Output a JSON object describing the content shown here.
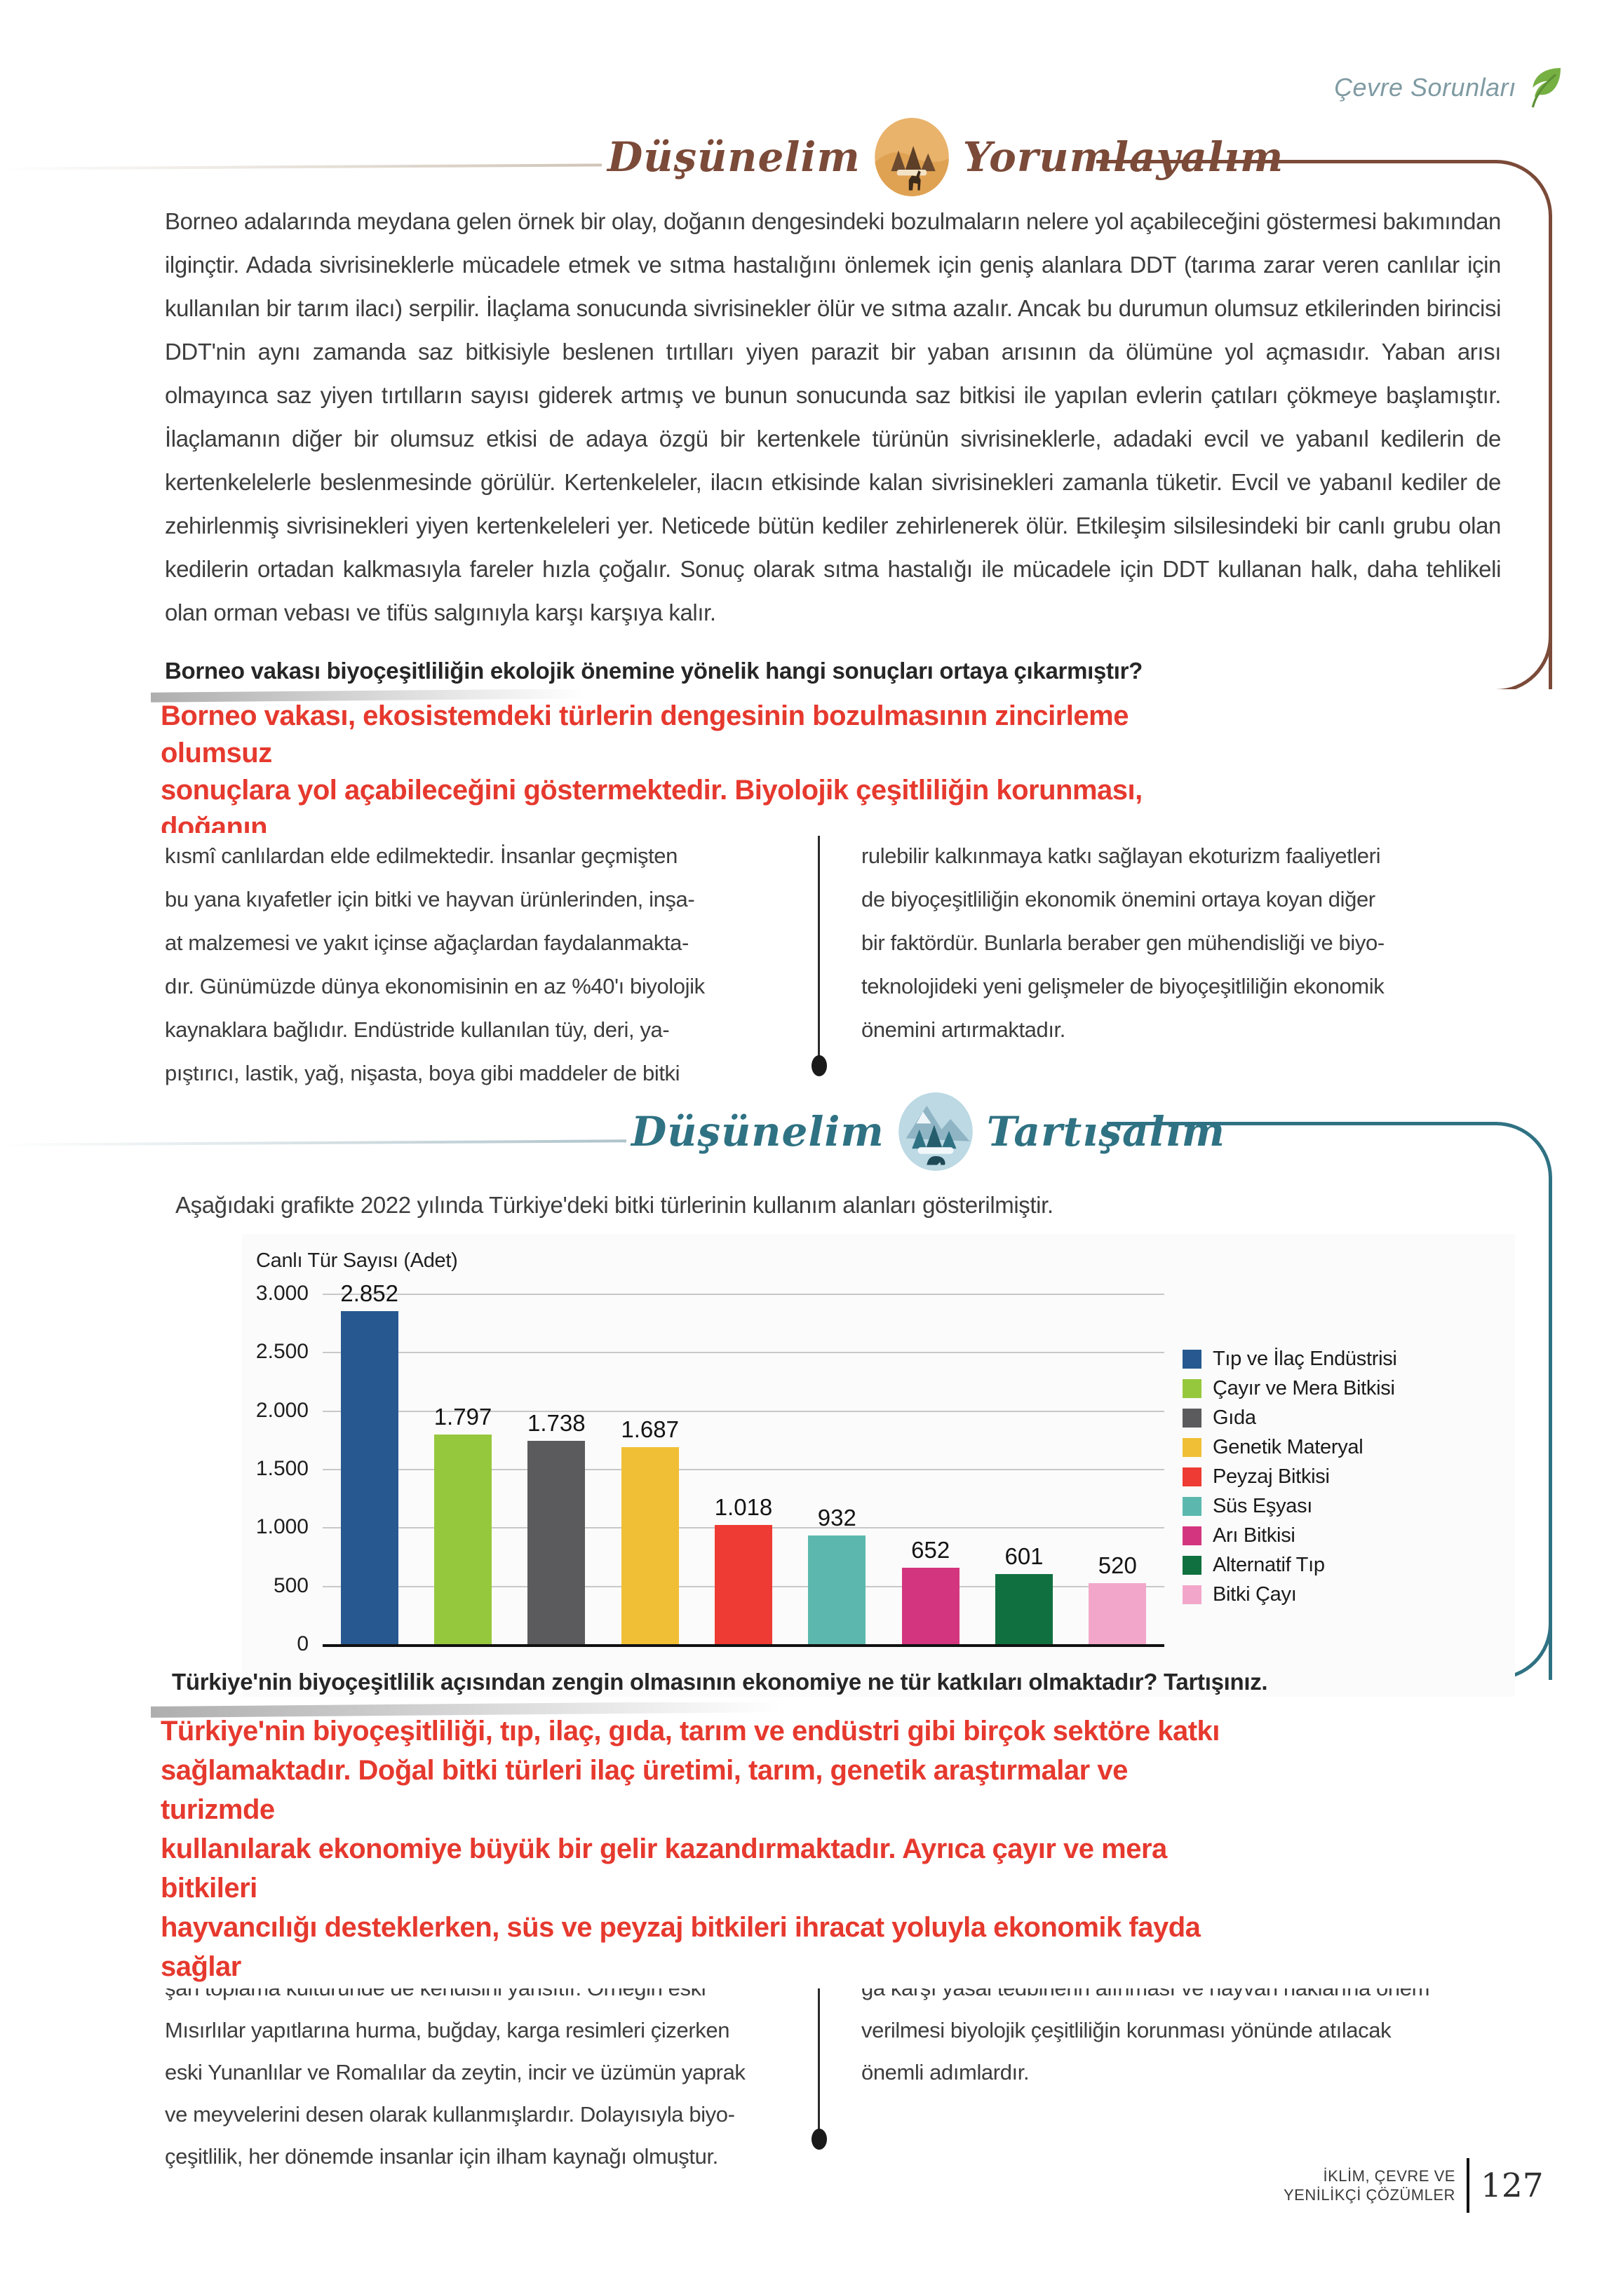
{
  "page": {
    "running_head": "Çevre Sorunları",
    "footer": {
      "line1": "İKLİM, ÇEVRE VE",
      "line2": "YENİLİKÇİ ÇÖZÜMLER",
      "page_number": "127"
    }
  },
  "section1": {
    "header": {
      "word1": "Düşünelim",
      "word2": "Yorumlayalım"
    },
    "paragraph": "Borneo adalarında meydana gelen örnek bir olay, doğanın dengesindeki bozulmaların nelere yol açabileceğini göstermesi bakımından ilginçtir. Adada sivrisineklerle mücadele etmek ve sıtma hastalığını önlemek için geniş alanlara DDT (tarıma zarar veren canlılar için kullanılan bir tarım ilacı) serpilir. İlaçlama sonucunda sivrisinekler ölür ve sıtma azalır. Ancak bu durumun olumsuz etkilerinden birincisi DDT'nin aynı zamanda saz bitkisiyle beslenen tırtılları yiyen parazit bir yaban arısının da ölümüne yol açmasıdır. Yaban arısı olmayınca saz yiyen tırtılların sayısı giderek artmış ve bunun sonucunda saz bitkisi ile yapılan evlerin çatıları çökmeye başlamıştır.  İlaçlamanın diğer bir olumsuz etkisi de adaya özgü bir kertenkele türünün sivrisineklerle, adadaki evcil ve yabanıl kedilerin de kertenkelelerle beslenmesinde görülür. Kertenkeleler, ilacın etkisinde kalan sivrisinekleri zamanla tüketir. Evcil ve yabanıl kediler de zehirlenmiş sivrisinekleri yiyen kertenkeleleri yer. Neticede bütün kediler zehirlenerek ölür. Etkileşim silsilesindeki bir canlı grubu olan kedilerin ortadan kalkmasıyla fareler hızla çoğalır. Sonuç olarak sıtma hastalığı ile mücadele için DDT kullanan halk, daha tehlikeli olan orman vebası ve tifüs salgınıyla karşı karşıya kalır.",
    "question": "Borneo vakası biyoçeşitliliğin ekolojik önemine yönelik hangi sonuçları ortaya çıkarmıştır?",
    "answer_lines": [
      "Borneo vakası, ekosistemdeki türlerin dengesinin bozulmasının zincirleme",
      "olumsuz",
      "sonuçlara yol açabileceğini göstermektedir. Biyolojik çeşitliliğin korunması,",
      "doğanın"
    ],
    "col_left_lines": [
      "kısmî canlılardan elde edilmektedir. İnsanlar geçmişten",
      "bu yana kıyafetler için bitki ve hayvan ürünlerinden, inşa-",
      "at malzemesi ve yakıt içinse ağaçlardan faydalanmakta-",
      "dır. Günümüzde dünya ekonomisinin en az %40'ı biyolojik",
      "kaynaklara bağlıdır. Endüstride kullanılan tüy, deri, ya-",
      "pıştırıcı, lastik, yağ, nişasta, boya gibi maddeler de bitki"
    ],
    "col_right_lines": [
      "rulebilir kalkınmaya katkı sağlayan ekoturizm faaliyetleri",
      "de biyoçeşitliliğin ekonomik önemini ortaya koyan diğer",
      "bir faktördür. Bunlarla beraber gen mühendisliği ve biyo-",
      "teknolojideki yeni gelişmeler de biyoçeşitliliğin ekonomik",
      "önemini artırmaktadır."
    ]
  },
  "section2": {
    "header": {
      "word1": "Düşünelim",
      "word2": "Tartışalım"
    },
    "caption": "Aşağıdaki grafikte 2022 yılında Türkiye'deki bitki türlerinin kullanım alanları gösterilmiştir.",
    "question": "Türkiye'nin biyoçeşitlilik açısından zengin olmasının ekonomiye ne tür katkıları olmaktadır? Tartışınız.",
    "answer_lines": [
      "Türkiye'nin biyoçeşitliliği, tıp, ilaç, gıda, tarım ve endüstri gibi birçok sektöre katkı",
      "sağlamaktadır. Doğal bitki türleri ilaç üretimi, tarım, genetik araştırmalar ve",
      "turizmde",
      "kullanılarak ekonomiye büyük bir gelir kazandırmaktadır. Ayrıca çayır ve mera",
      "bitkileri",
      "hayvancılığı desteklerken, süs ve peyzaj bitkileri ihracat yoluyla ekonomik fayda",
      "sağlar"
    ],
    "col_left_lines": [
      "şan toplama kültüründe de kendisini yansıtır. Örneğin eski",
      "Mısırlılar yapıtlarına hurma, buğday, karga resimleri çizerken",
      "eski Yunanlılar ve Romalılar da zeytin, incir ve üzümün yaprak",
      "ve meyvelerini desen olarak kullanmışlardır. Dolayısıyla biyo-",
      "çeşitlilik, her dönemde insanlar için ilham kaynağı olmuştur."
    ],
    "col_right_lines": [
      "ğa karşı yasal tedbirlerin alınması ve hayvan haklarına önem",
      "verilmesi biyolojik çeşitliliğin korunması yönünde atılacak",
      "önemli adımlardır."
    ]
  },
  "chart_data": {
    "type": "bar",
    "title": "Canlı Tür Sayısı (Adet)",
    "ylabel": "Canlı Tür Sayısı (Adet)",
    "xlabel": "",
    "categories": [
      "Tıp ve İlaç Endüstrisi",
      "Çayır ve Mera Bitkisi",
      "Gıda",
      "Genetik Materyal",
      "Peyzaj Bitkisi",
      "Süs Eşyası",
      "Arı Bitkisi",
      "Alternatif Tıp",
      "Bitki Çayı"
    ],
    "values": [
      2852,
      1797,
      1738,
      1687,
      1018,
      932,
      652,
      601,
      520
    ],
    "value_labels": [
      "2.852",
      "1.797",
      "1.738",
      "1.687",
      "1.018",
      "932",
      "652",
      "601",
      "520"
    ],
    "colors": [
      "#27588f",
      "#96c83e",
      "#5b5b5d",
      "#f0bf35",
      "#ee3b33",
      "#5cb8ae",
      "#d3357f",
      "#117040",
      "#f2a7ca"
    ],
    "y_ticks": [
      "3.000",
      "2.500",
      "2.000",
      "1.500",
      "1.000",
      "500",
      "0"
    ],
    "y_tick_values": [
      3000,
      2500,
      2000,
      1500,
      1000,
      500,
      0
    ],
    "ylim": [
      0,
      3000
    ],
    "grid": true,
    "legend_position": "right"
  },
  "colors": {
    "accent_brown": "#7b4a38",
    "accent_teal": "#2f7283",
    "answer_red": "#e6392e",
    "leaf_green": "#76b043",
    "running_head": "#7f9aa2"
  }
}
